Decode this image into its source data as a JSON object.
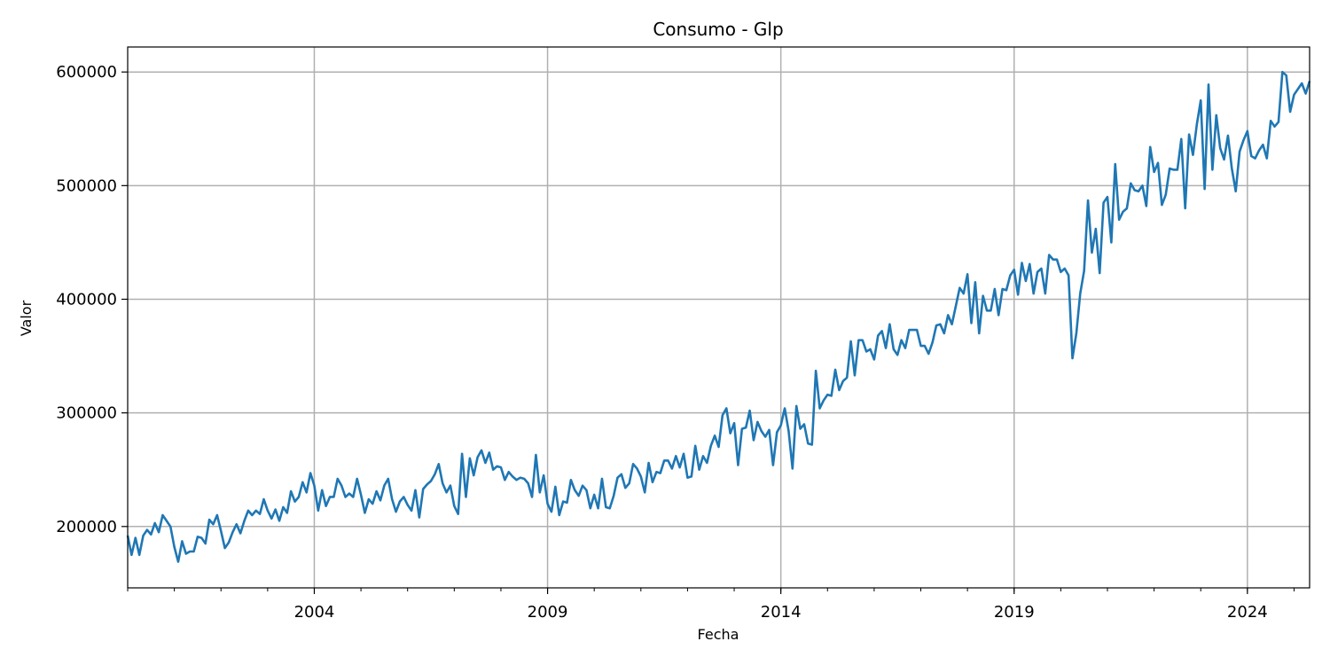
{
  "chart_data": {
    "type": "line",
    "title": "Consumo - Glp",
    "xlabel": "Fecha",
    "ylabel": "Valor",
    "grid": true,
    "x_start": "2000-01",
    "x_end": "2025-05",
    "xlim": [
      "2000-01",
      "2025-05"
    ],
    "ylim": [
      146000,
      622000
    ],
    "x_ticks": [
      "2004",
      "2009",
      "2014",
      "2019",
      "2024"
    ],
    "y_ticks": [
      "200000",
      "300000",
      "400000",
      "500000",
      "600000"
    ],
    "series": [
      {
        "color": "#1f77b4",
        "values": [
          192000,
          175000,
          190000,
          175000,
          192000,
          197000,
          193000,
          203000,
          195000,
          210000,
          205000,
          200000,
          182000,
          169000,
          187000,
          176000,
          178000,
          178000,
          191000,
          190000,
          185000,
          206000,
          202000,
          210000,
          196000,
          181000,
          186000,
          195000,
          202000,
          194000,
          205000,
          214000,
          210000,
          214000,
          211000,
          224000,
          214000,
          207000,
          215000,
          205000,
          217000,
          212000,
          231000,
          222000,
          226000,
          239000,
          230000,
          247000,
          236000,
          214000,
          232000,
          218000,
          226000,
          226000,
          242000,
          236000,
          226000,
          229000,
          226000,
          242000,
          228000,
          212000,
          224000,
          220000,
          231000,
          223000,
          236000,
          242000,
          224000,
          213000,
          222000,
          226000,
          219000,
          214000,
          232000,
          208000,
          233000,
          237000,
          240000,
          246000,
          255000,
          238000,
          230000,
          236000,
          218000,
          211000,
          264000,
          226000,
          260000,
          245000,
          261000,
          267000,
          256000,
          265000,
          250000,
          253000,
          252000,
          241000,
          248000,
          244000,
          241000,
          243000,
          242000,
          238000,
          226000,
          263000,
          230000,
          245000,
          220000,
          213000,
          235000,
          210000,
          222000,
          221000,
          241000,
          232000,
          227000,
          236000,
          232000,
          216000,
          228000,
          216000,
          242000,
          217000,
          216000,
          227000,
          243000,
          246000,
          234000,
          238000,
          255000,
          251000,
          244000,
          230000,
          256000,
          239000,
          248000,
          247000,
          258000,
          258000,
          251000,
          262000,
          252000,
          264000,
          243000,
          244000,
          271000,
          250000,
          262000,
          256000,
          271000,
          280000,
          270000,
          298000,
          304000,
          282000,
          291000,
          254000,
          286000,
          287000,
          302000,
          276000,
          292000,
          284000,
          279000,
          285000,
          254000,
          283000,
          289000,
          304000,
          284000,
          251000,
          306000,
          286000,
          290000,
          273000,
          272000,
          337000,
          304000,
          311000,
          316000,
          315000,
          338000,
          320000,
          328000,
          331000,
          363000,
          333000,
          364000,
          364000,
          354000,
          356000,
          347000,
          368000,
          372000,
          357000,
          378000,
          356000,
          351000,
          364000,
          357000,
          373000,
          373000,
          373000,
          359000,
          359000,
          352000,
          362000,
          377000,
          378000,
          370000,
          386000,
          378000,
          394000,
          410000,
          405000,
          422000,
          379000,
          415000,
          370000,
          403000,
          390000,
          390000,
          409000,
          386000,
          409000,
          408000,
          421000,
          426000,
          404000,
          432000,
          416000,
          431000,
          405000,
          424000,
          427000,
          405000,
          439000,
          435000,
          435000,
          424000,
          427000,
          421000,
          348000,
          370000,
          405000,
          425000,
          487000,
          441000,
          462000,
          423000,
          485000,
          490000,
          450000,
          519000,
          470000,
          477000,
          480000,
          502000,
          496000,
          495000,
          500000,
          482000,
          534000,
          512000,
          520000,
          483000,
          492000,
          515000,
          514000,
          514000,
          541000,
          480000,
          545000,
          527000,
          554000,
          575000,
          497000,
          589000,
          514000,
          562000,
          533000,
          523000,
          544000,
          515000,
          495000,
          530000,
          540000,
          548000,
          526000,
          524000,
          531000,
          536000,
          524000,
          557000,
          552000,
          556000,
          600000,
          597000,
          565000,
          580000,
          585000,
          590000,
          581000,
          592000
        ]
      }
    ]
  }
}
